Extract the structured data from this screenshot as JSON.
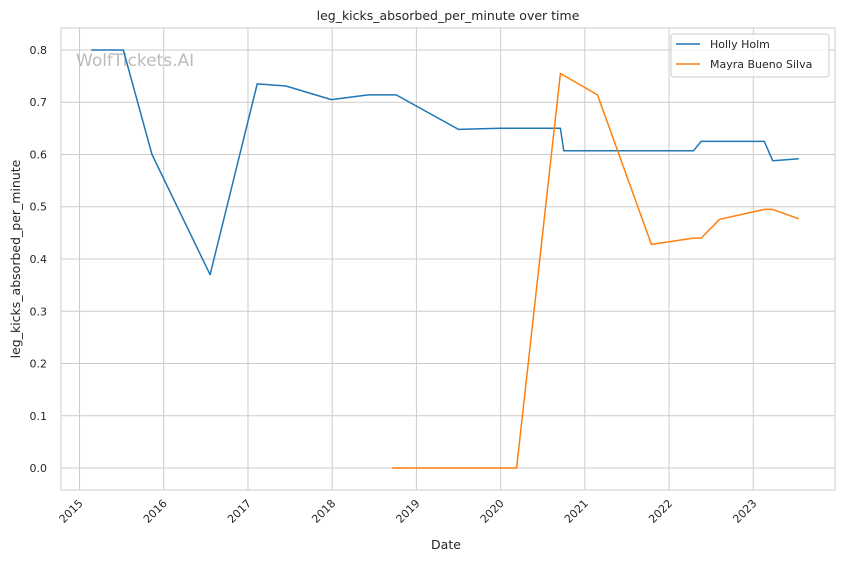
{
  "chart_data": {
    "type": "line",
    "title": "leg_kicks_absorbed_per_minute over time",
    "xlabel": "Date",
    "ylabel": "leg_kicks_absorbed_per_minute",
    "xlim": [
      2014.78,
      2023.97
    ],
    "ylim": [
      -0.042,
      0.842
    ],
    "xticks": [
      2015,
      2016,
      2017,
      2018,
      2019,
      2020,
      2021,
      2022,
      2023
    ],
    "xtick_labels": [
      "2015",
      "2016",
      "2017",
      "2018",
      "2019",
      "2020",
      "2021",
      "2022",
      "2023"
    ],
    "yticks": [
      0.0,
      0.1,
      0.2,
      0.3,
      0.4,
      0.5,
      0.6,
      0.7,
      0.8
    ],
    "ytick_labels": [
      "0.0",
      "0.1",
      "0.2",
      "0.3",
      "0.4",
      "0.5",
      "0.6",
      "0.7",
      "0.8"
    ],
    "grid": true,
    "legend_position": "top-right",
    "watermark": "WolfTickets.AI",
    "series": [
      {
        "name": "Holly Holm",
        "color": "#1f77b4",
        "x": [
          2015.14,
          2015.52,
          2015.86,
          2016.55,
          2017.11,
          2017.45,
          2017.99,
          2018.43,
          2018.76,
          2019.5,
          2020.0,
          2020.71,
          2020.75,
          2022.29,
          2022.38,
          2023.13,
          2023.23,
          2023.54
        ],
        "y": [
          0.8,
          0.8,
          0.6,
          0.37,
          0.735,
          0.731,
          0.705,
          0.714,
          0.714,
          0.648,
          0.65,
          0.65,
          0.607,
          0.607,
          0.625,
          0.625,
          0.588,
          0.592
        ]
      },
      {
        "name": "Mayra Bueno Silva",
        "color": "#ff7f0e",
        "x": [
          2018.71,
          2020.19,
          2020.71,
          2021.15,
          2021.79,
          2022.29,
          2022.38,
          2022.6,
          2023.13,
          2023.23,
          2023.54
        ],
        "y": [
          0.0,
          0.0,
          0.755,
          0.714,
          0.428,
          0.44,
          0.44,
          0.476,
          0.495,
          0.495,
          0.477
        ]
      }
    ]
  }
}
